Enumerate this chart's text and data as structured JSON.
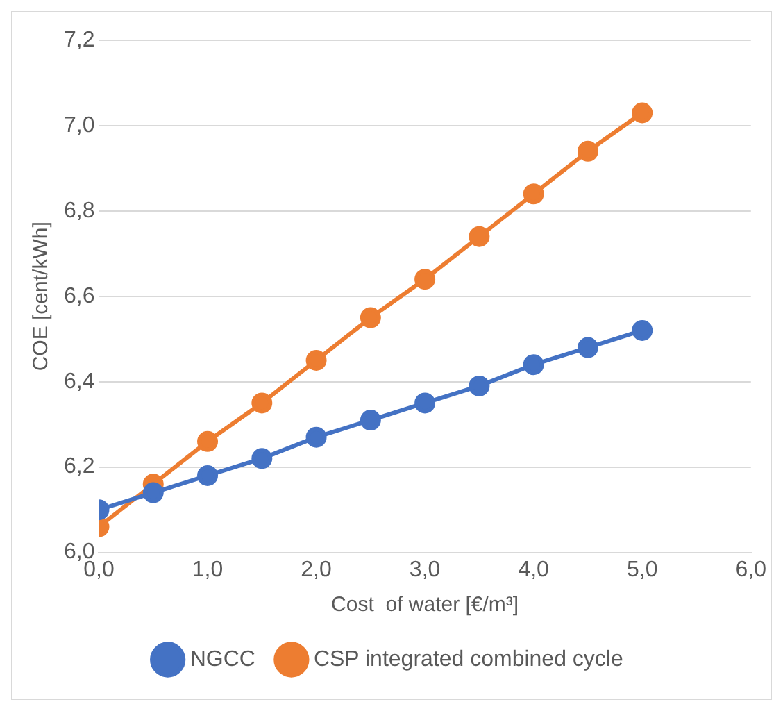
{
  "chart_data": {
    "type": "line",
    "xlabel": "Cost  of water [€/m³]",
    "ylabel": "COE [cent/kWh]",
    "x": [
      0,
      0.5,
      1,
      1.5,
      2,
      2.5,
      3,
      3.5,
      4,
      4.5,
      5
    ],
    "series": [
      {
        "name": "NGCC",
        "color": "#4472c4",
        "values": [
          6.1,
          6.14,
          6.18,
          6.22,
          6.27,
          6.31,
          6.35,
          6.39,
          6.44,
          6.48,
          6.52
        ]
      },
      {
        "name": "CSP integrated combined cycle",
        "color": "#ed7d31",
        "values": [
          6.06,
          6.16,
          6.26,
          6.35,
          6.45,
          6.55,
          6.64,
          6.74,
          6.84,
          6.94,
          7.03
        ]
      }
    ],
    "xlim": [
      0,
      6
    ],
    "xticks": [
      {
        "value": 0,
        "label": "0,0"
      },
      {
        "value": 1,
        "label": "1,0"
      },
      {
        "value": 2,
        "label": "2,0"
      },
      {
        "value": 3,
        "label": "3,0"
      },
      {
        "value": 4,
        "label": "4,0"
      },
      {
        "value": 5,
        "label": "5,0"
      },
      {
        "value": 6,
        "label": "6,0"
      }
    ],
    "ylim": [
      6,
      7.2
    ],
    "yticks": [
      {
        "value": 6,
        "label": "6,0"
      },
      {
        "value": 6.2,
        "label": "6,2"
      },
      {
        "value": 6.4,
        "label": "6,4"
      },
      {
        "value": 6.6,
        "label": "6,6"
      },
      {
        "value": 6.8,
        "label": "6,8"
      },
      {
        "value": 7,
        "label": "7,0"
      },
      {
        "value": 7.2,
        "label": "7,2"
      }
    ],
    "grid": "y",
    "legend": "bottom",
    "marker": "circle",
    "line_style": "solid"
  }
}
